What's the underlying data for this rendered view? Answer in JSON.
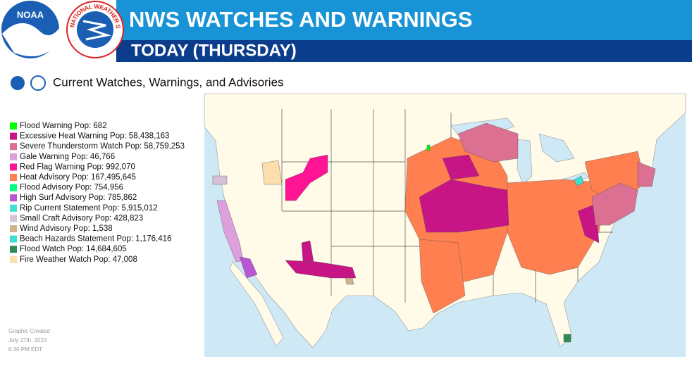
{
  "header": {
    "title": "NWS WATCHES AND WARNINGS",
    "subtitle": "TODAY (THURSDAY)",
    "nws_ring": "NATIONAL WEATHER SERVICE",
    "noaa": "NOAA"
  },
  "map": {
    "title": "Current Watches, Warnings, and Advisories"
  },
  "legend": [
    {
      "label": "Flood Warning  Pop: 682",
      "color": "#00ff00"
    },
    {
      "label": "Excessive Heat Warning  Pop: 58,438,163",
      "color": "#c71585"
    },
    {
      "label": "Severe Thunderstorm Watch  Pop: 58,759,253",
      "color": "#db7093"
    },
    {
      "label": "Gale Warning  Pop: 46,766",
      "color": "#dda0dd"
    },
    {
      "label": "Red Flag Warning  Pop: 992,070",
      "color": "#ff1493"
    },
    {
      "label": "Heat Advisory  Pop: 167,495,645",
      "color": "#ff7f50"
    },
    {
      "label": "Flood Advisory  Pop: 754,956",
      "color": "#00ff7f"
    },
    {
      "label": "High Surf Advisory  Pop: 785,862",
      "color": "#ba55d3"
    },
    {
      "label": "Rip Current Statement  Pop: 5,915,012",
      "color": "#40e0d0"
    },
    {
      "label": "Small Craft Advisory  Pop: 428,823",
      "color": "#d8bfd8"
    },
    {
      "label": "Wind Advisory  Pop: 1,538",
      "color": "#d2b48c"
    },
    {
      "label": "Beach Hazards Statement  Pop: 1,176,416",
      "color": "#40e0d0"
    },
    {
      "label": "Flood Watch  Pop: 14,684,605",
      "color": "#2e8b57"
    },
    {
      "label": "Fire Weather Watch  Pop: 47,008",
      "color": "#ffdead"
    }
  ],
  "footer": [
    "Graphic Created",
    "July 27th, 2023",
    "6:30 PM EDT"
  ]
}
